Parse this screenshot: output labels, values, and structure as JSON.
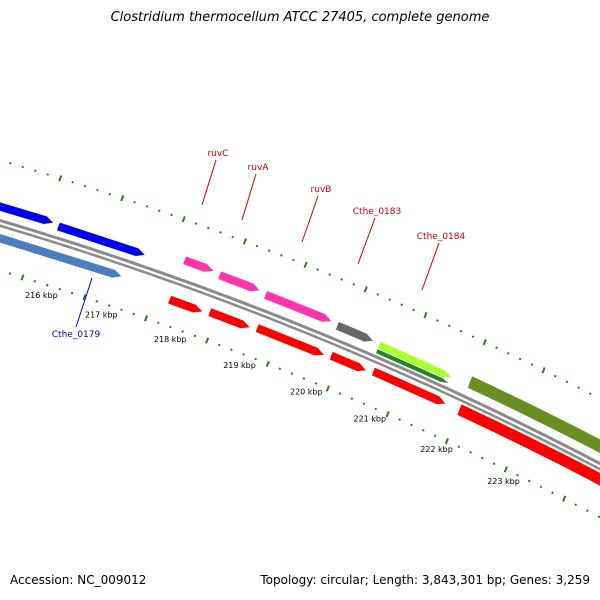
{
  "title": "Clostridium thermocellum ATCC 27405, complete genome",
  "footer": {
    "accession": "Accession: NC_009012",
    "summary": "Topology: circular; Length: 3,843,301 bp; Genes: 3,259"
  },
  "colors": {
    "backbone": "#8a8a8a",
    "tick": "#2e7d1e",
    "forward_label": "#cc0000",
    "reverse_label": "#0000cc",
    "cds": "#ff0000",
    "magenta": "#ff33aa",
    "blue": "#0000ee",
    "steel_blue": "#4a7fbf",
    "gray": "#666666",
    "lime": "#aaff33",
    "green": "#228822",
    "olive": "#6b8e23"
  },
  "scale": {
    "labels": [
      "216 kbp",
      "217 kbp",
      "218 kbp",
      "219 kbp",
      "220 kbp",
      "221 kbp",
      "222 kbp",
      "223 kbp"
    ]
  },
  "gene_labels": [
    {
      "text": "ruvC",
      "strand": "forward"
    },
    {
      "text": "ruvA",
      "strand": "forward"
    },
    {
      "text": "ruvB",
      "strand": "forward"
    },
    {
      "text": "Cthe_0183",
      "strand": "forward"
    },
    {
      "text": "Cthe_0184",
      "strand": "forward"
    },
    {
      "text": "Cthe_0179",
      "strand": "reverse"
    }
  ]
}
